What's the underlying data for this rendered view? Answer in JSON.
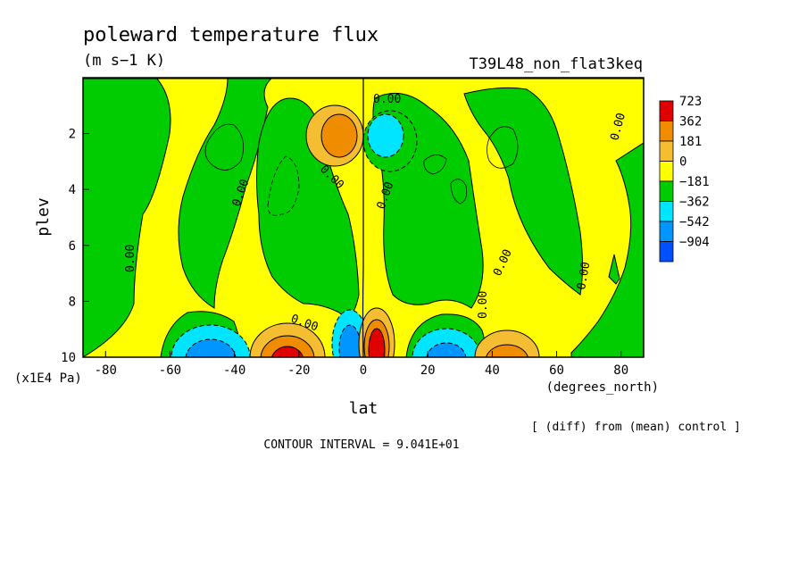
{
  "chart_data": {
    "type": "heatmap",
    "title": "poleward temperature flux",
    "units": "(m s−1 K)",
    "run_label": "T39L48_non_flat3keq",
    "xlabel": "lat",
    "xunits": "(degrees_north)",
    "ylabel": "plev",
    "yunits": "(x1E4 Pa)",
    "xlim": [
      -87,
      87
    ],
    "ylim": [
      10,
      0
    ],
    "x_ticks": [
      -80,
      -60,
      -40,
      -20,
      0,
      20,
      40,
      60,
      80
    ],
    "y_ticks": [
      2,
      4,
      6,
      8,
      10
    ],
    "colorbar": {
      "levels": [
        723,
        362,
        181,
        0,
        -181,
        -362,
        -542,
        -904
      ],
      "level_labels": [
        "723",
        "362",
        "181",
        "0",
        "−181",
        "−362",
        "−542",
        "−904"
      ],
      "colors": [
        "#e00000",
        "#f08c00",
        "#f5be32",
        "#ffff00",
        "#00cc00",
        "#00e5ff",
        "#0096ff",
        "#0050ff"
      ]
    },
    "contour_label_value": "0.00",
    "contour_interval": "CONTOUR INTERVAL = 9.041E+01",
    "note": "[ (diff) from (mean) control ]",
    "features": [
      {
        "lat": -27,
        "plev": 9.8,
        "sign": "positive",
        "level": 723
      },
      {
        "lat": -45,
        "plev": 9.6,
        "sign": "negative",
        "level": -362
      },
      {
        "lat": -5,
        "plev": 9.4,
        "sign": "negative",
        "level": -542
      },
      {
        "lat": 5,
        "plev": 9.3,
        "sign": "positive",
        "level": 723
      },
      {
        "lat": 25,
        "plev": 9.6,
        "sign": "negative",
        "level": -362
      },
      {
        "lat": 45,
        "plev": 9.7,
        "sign": "positive",
        "level": 362
      },
      {
        "lat": -8,
        "plev": 2.2,
        "sign": "positive",
        "level": 362
      },
      {
        "lat": 8,
        "plev": 2.4,
        "sign": "negative",
        "level": -362
      }
    ]
  }
}
